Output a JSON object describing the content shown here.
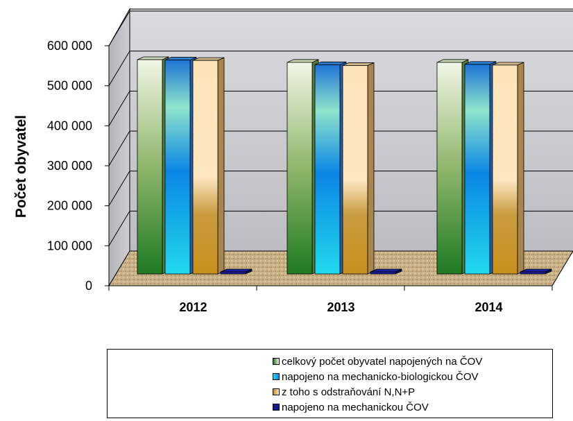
{
  "chart_data": {
    "type": "bar",
    "categories": [
      "2012",
      "2013",
      "2014"
    ],
    "ylabel": "Počet obyvatel",
    "xlabel": "",
    "ylim": [
      0,
      600000
    ],
    "yticks": [
      0,
      100000,
      200000,
      300000,
      400000,
      500000,
      600000
    ],
    "ytick_labels": [
      "0",
      "100 000",
      "200 000",
      "300 000",
      "400 000",
      "500 000",
      "600 000"
    ],
    "gridlines": true,
    "legend_position": "bottom",
    "series": [
      {
        "name": "celkový počet obyvatel napojených na ČOV",
        "values": [
          550000,
          543000,
          543000
        ]
      },
      {
        "name": "napojeno na mechanicko-biologickou ČOV",
        "values": [
          549000,
          537000,
          538000
        ]
      },
      {
        "name": "z toho s odstraňování N,N+P",
        "values": [
          548000,
          535000,
          536000
        ]
      },
      {
        "name": "napojeno na mechanickou ČOV",
        "values": [
          1000,
          1000,
          1000
        ]
      }
    ],
    "colors": {
      "green_dark": "#1f7a23",
      "green_mid": "#8fb66c",
      "green_light": "#f1f6e6",
      "cyan": "#22d9ec",
      "blue_mid": "#0a86e6",
      "teal_light": "#8fe4cc",
      "gold_dark": "#c78f1c",
      "tan": "#e3c080",
      "cream": "#fde6c0",
      "navy": "#141a8c",
      "wall": "#d2d2d7",
      "floor": "#c8b088"
    }
  }
}
